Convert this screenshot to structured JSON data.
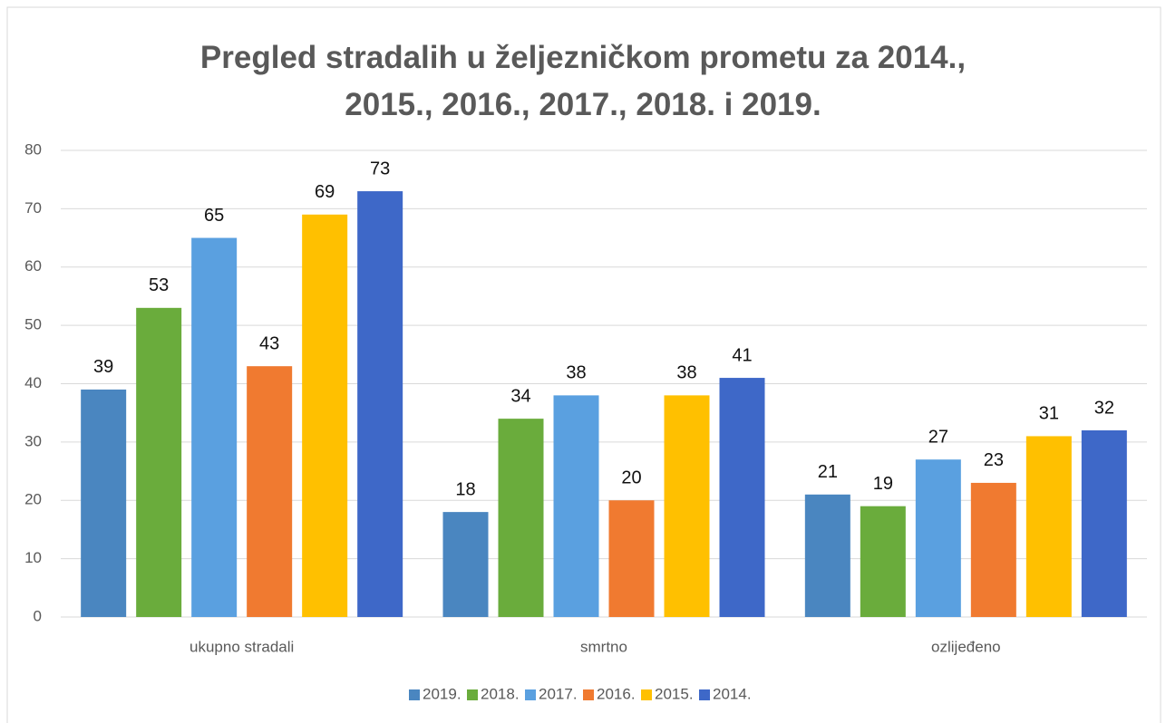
{
  "chart_data": {
    "type": "bar",
    "title": "Pregled stradalih u željezničkom prometu za 2014., 2015., 2016., 2017., 2018. i 2019.",
    "categories": [
      "ukupno stradali",
      "smrtno",
      "ozlijeđeno"
    ],
    "series": [
      {
        "name": "2019.",
        "color": "#4a86c0",
        "values": [
          39,
          18,
          21
        ]
      },
      {
        "name": "2018.",
        "color": "#6aac3c",
        "values": [
          53,
          34,
          19
        ]
      },
      {
        "name": "2017.",
        "color": "#5aa0e0",
        "values": [
          65,
          38,
          27
        ]
      },
      {
        "name": "2016.",
        "color": "#f07a30",
        "values": [
          43,
          20,
          23
        ]
      },
      {
        "name": "2015.",
        "color": "#ffc000",
        "values": [
          69,
          38,
          31
        ]
      },
      {
        "name": "2014.",
        "color": "#3e68c8",
        "values": [
          73,
          41,
          32
        ]
      }
    ],
    "ylim": [
      0,
      80
    ],
    "yticks": [
      0,
      10,
      20,
      30,
      40,
      50,
      60,
      70,
      80
    ],
    "grid": true,
    "legend": "bottom"
  }
}
